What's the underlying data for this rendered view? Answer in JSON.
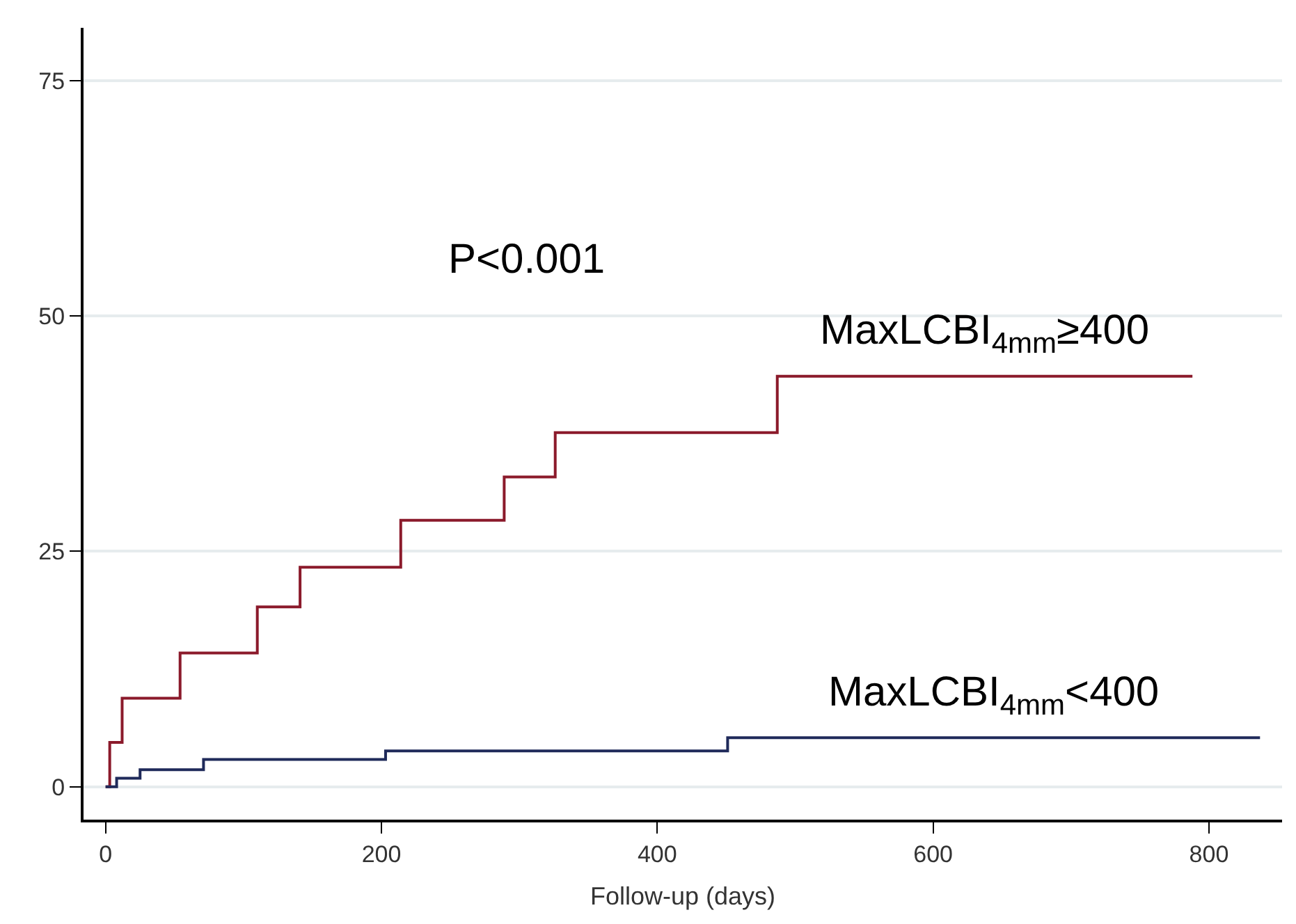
{
  "chart_data": {
    "type": "step",
    "xlabel": "Follow-up (days)",
    "xlim": [
      -16,
      853
    ],
    "ylim": [
      -3.5,
      80.6
    ],
    "xticks": [
      0,
      200,
      400,
      600,
      800
    ],
    "yticks": [
      0,
      25,
      50,
      75
    ],
    "grid": "y",
    "legend": false,
    "marker": "none",
    "line_style": "solid",
    "annotations": [
      "P<0.001"
    ],
    "series": [
      {
        "name": "MaxLCBI$_{4mm}$≥400",
        "color": "#8b1a2b",
        "x": [
          0,
          3,
          12,
          54,
          110,
          141,
          214,
          289,
          326,
          487,
          788
        ],
        "values": [
          0,
          4.7,
          9.4,
          14.2,
          19.1,
          23.3,
          28.3,
          32.9,
          37.6,
          43.6,
          43.6
        ]
      },
      {
        "name": "MaxLCBI$_{4mm}$<400",
        "color": "#1f2a5a",
        "x": [
          0,
          8,
          25,
          71,
          203,
          451,
          837
        ],
        "values": [
          0,
          0.9,
          1.8,
          2.9,
          3.8,
          5.2,
          5.2
        ]
      }
    ]
  }
}
